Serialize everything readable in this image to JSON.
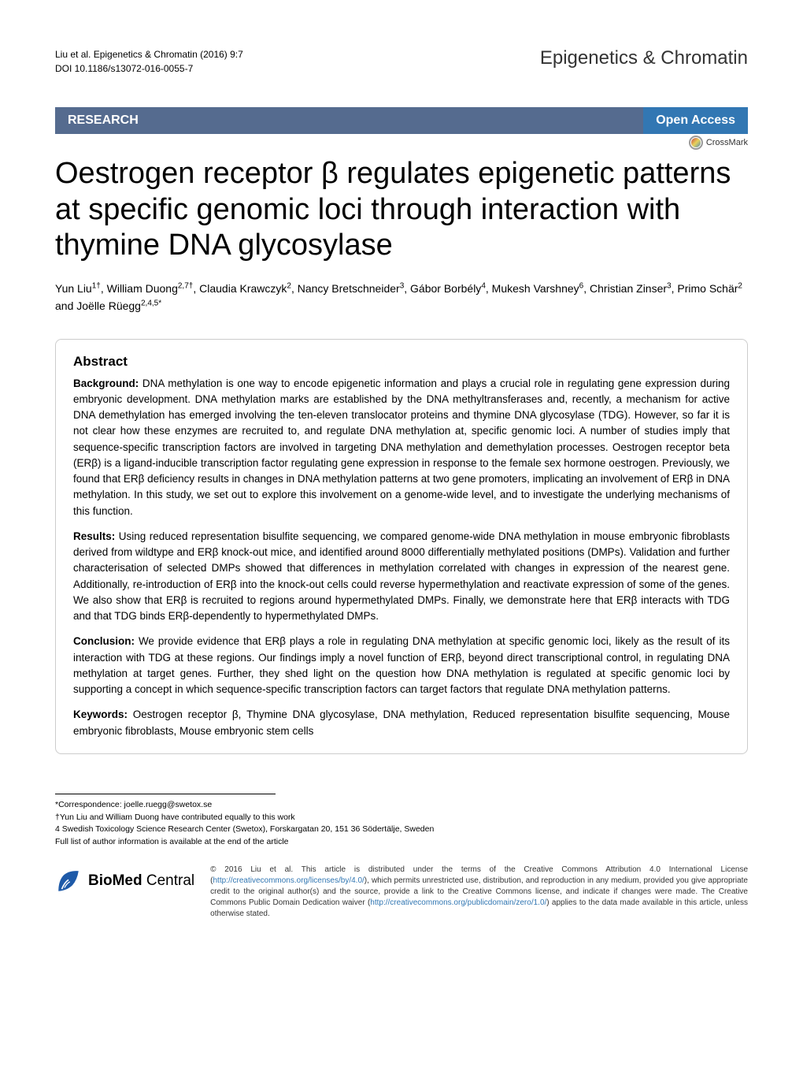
{
  "header": {
    "citation": "Liu et al. Epigenetics & Chromatin  (2016) 9:7",
    "doi": "DOI 10.1186/s13072-016-0055-7",
    "journal": "Epigenetics & Chromatin"
  },
  "banner": {
    "research": "RESEARCH",
    "open_access": "Open Access",
    "crossmark": "CrossMark"
  },
  "title": "Oestrogen receptor β regulates epigenetic patterns at specific genomic loci through interaction with thymine DNA glycosylase",
  "authors_html": "Yun Liu<sup>1†</sup>, William Duong<sup>2,7†</sup>, Claudia Krawczyk<sup>2</sup>, Nancy Bretschneider<sup>3</sup>, Gábor Borbély<sup>4</sup>, Mukesh Varshney<sup>6</sup>, Christian Zinser<sup>3</sup>, Primo Schär<sup>2</sup> and Joëlle Rüegg<sup>2,4,5*</sup>",
  "abstract": {
    "heading": "Abstract",
    "background_label": "Background:",
    "background": "DNA methylation is one way to encode epigenetic information and plays a crucial role in regulating gene expression during embryonic development. DNA methylation marks are established by the DNA methyltransferases and, recently, a mechanism for active DNA demethylation has emerged involving the ten-eleven translocator proteins and thymine DNA glycosylase (TDG). However, so far it is not clear how these enzymes are recruited to, and regulate DNA methylation at, specific genomic loci. A number of studies imply that sequence-specific transcription factors are involved in targeting DNA methylation and demethylation processes. Oestrogen receptor beta (ERβ) is a ligand-inducible transcription factor regulating gene expression in response to the female sex hormone oestrogen. Previously, we found that ERβ deficiency results in changes in DNA methylation patterns at two gene promoters, implicating an involvement of ERβ in DNA methylation. In this study, we set out to explore this involvement on a genome-wide level, and to investigate the underlying mechanisms of this function.",
    "results_label": "Results:",
    "results": "Using reduced representation bisulfite sequencing, we compared genome-wide DNA methylation in mouse embryonic fibroblasts derived from wildtype and ERβ knock-out mice, and identified around 8000 differentially methylated positions (DMPs). Validation and further characterisation of selected DMPs showed that differences in methylation correlated with changes in expression of the nearest gene. Additionally, re-introduction of ERβ into the knock-out cells could reverse hypermethylation and reactivate expression of some of the genes. We also show that ERβ is recruited to regions around hypermethylated DMPs. Finally, we demonstrate here that ERβ interacts with TDG and that TDG binds ERβ-dependently to hypermethylated DMPs.",
    "conclusion_label": "Conclusion:",
    "conclusion": "We provide evidence that ERβ plays a role in regulating DNA methylation at specific genomic loci, likely as the result of its interaction with TDG at these regions. Our findings imply a novel function of ERβ, beyond direct transcriptional control, in regulating DNA methylation at target genes. Further, they shed light on the question how DNA methylation is regulated at specific genomic loci by supporting a concept in which sequence-specific transcription factors can target factors that regulate DNA methylation patterns.",
    "keywords_label": "Keywords:",
    "keywords": "Oestrogen receptor β, Thymine DNA glycosylase, DNA methylation, Reduced representation bisulfite sequencing, Mouse embryonic fibroblasts, Mouse embryonic stem cells"
  },
  "footer": {
    "correspondence": "*Correspondence:  joelle.ruegg@swetox.se",
    "contrib": "†Yun Liu and William Duong have contributed equally to this work",
    "affiliation": "4 Swedish Toxicology Science Research Center (Swetox), Forskargatan 20, 151 36 Södertälje, Sweden",
    "full_list": "Full list of author information is available at the end of the article",
    "bmc_brand_bold": "BioMed",
    "bmc_brand_rest": " Central",
    "license_pre": "© 2016 Liu et al. This article is distributed under the terms of the Creative Commons Attribution 4.0 International License (",
    "license_link1": "http://creativecommons.org/licenses/by/4.0/",
    "license_mid": "), which permits unrestricted use, distribution, and reproduction in any medium, provided you give appropriate credit to the original author(s) and the source, provide a link to the Creative Commons license, and indicate if changes were made. The Creative Commons Public Domain Dedication waiver (",
    "license_link2": "http://creativecommons.org/publicdomain/zero/1.0/",
    "license_post": ") applies to the data made available in this article, unless otherwise stated."
  },
  "colors": {
    "banner_bg": "#556b8f",
    "openaccess_bg": "#3277b3",
    "link_color": "#3277b3",
    "border_color": "#cccccc"
  }
}
